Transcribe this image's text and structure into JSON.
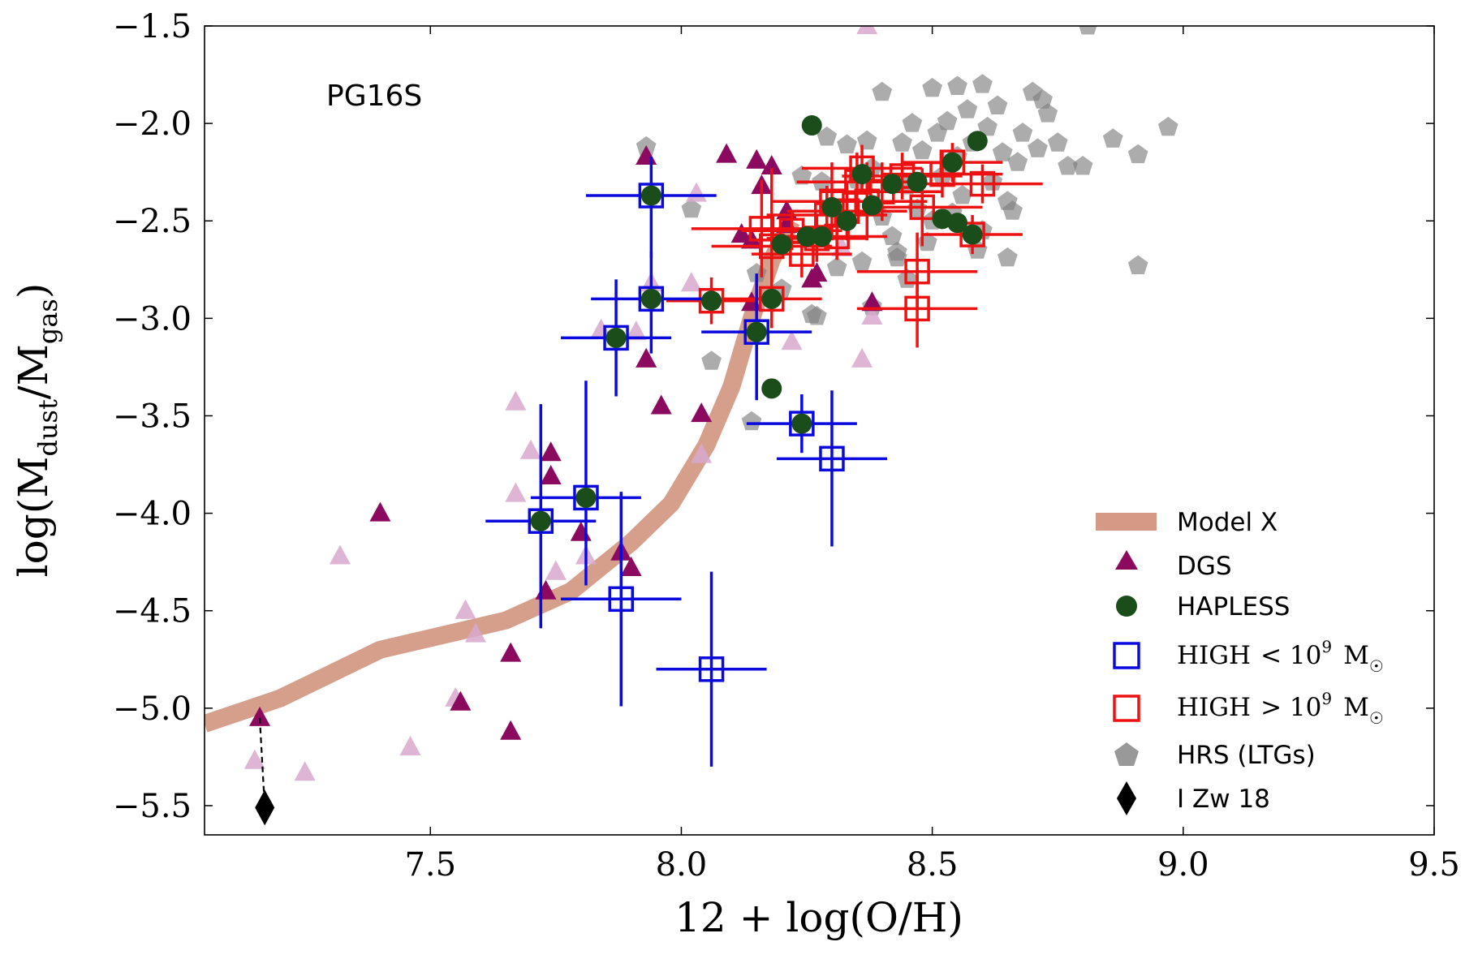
{
  "chart_data": {
    "type": "scatter",
    "title": "",
    "annotation": "PG16S",
    "xlabel": "12 + log(O/H)",
    "ylabel": {
      "prefix": "log(M",
      "sub1": "dust",
      "mid": "/M",
      "sub2": "gas",
      "suffix": ")"
    },
    "xlim": [
      7.05,
      9.5
    ],
    "ylim": [
      -5.65,
      -1.5
    ],
    "x_ticks": [
      7.5,
      8.0,
      8.5,
      9.0,
      9.5
    ],
    "x_tick_labels": [
      "7.5",
      "8.0",
      "8.5",
      "9.0",
      "9.5"
    ],
    "y_ticks": [
      -1.5,
      -2.0,
      -2.5,
      -3.0,
      -3.5,
      -4.0,
      -4.5,
      -5.0,
      -5.5
    ],
    "y_tick_labels": [
      "−1.5",
      "−2.0",
      "−2.5",
      "−3.0",
      "−3.5",
      "−4.0",
      "−4.5",
      "−5.0",
      "−5.5"
    ],
    "legend": {
      "position": "bottom-right",
      "entries": [
        {
          "key": "model",
          "label": "Model X"
        },
        {
          "key": "dgs",
          "label": "DGS"
        },
        {
          "key": "hapless",
          "label": "HAPLESS"
        },
        {
          "key": "high_low",
          "label": "HIGH",
          "math": "< 10",
          "exp": "9",
          "unit": "M",
          "unit_sym": "☉"
        },
        {
          "key": "high_high",
          "label": "HIGH",
          "math": "> 10",
          "exp": "9",
          "unit": "M",
          "unit_sym": "☉"
        },
        {
          "key": "hrs",
          "label": "HRS (LTGs)"
        },
        {
          "key": "izw18",
          "label": "I Zw 18"
        }
      ]
    },
    "colors": {
      "model": "#d49a86",
      "dgs": "#8b0a5f",
      "dgs_limits": "#d8a8cc",
      "hapless": "#1b4d1b",
      "high_low": "#0a0adf",
      "high_high": "#ee1111",
      "hrs": "#808080",
      "izw18": "#000000"
    },
    "model_curve": {
      "x": [
        7.05,
        7.2,
        7.4,
        7.65,
        7.78,
        7.9,
        7.98,
        8.05,
        8.1,
        8.14,
        8.18,
        8.22
      ],
      "y": [
        -5.08,
        -4.95,
        -4.7,
        -4.55,
        -4.4,
        -4.15,
        -3.95,
        -3.65,
        -3.35,
        -3.0,
        -2.7,
        -2.5
      ]
    },
    "series": [
      {
        "name": "DGS",
        "key": "dgs",
        "marker": "triangle",
        "points": [
          [
            7.16,
            -5.05
          ],
          [
            7.4,
            -4.0
          ],
          [
            7.56,
            -4.97
          ],
          [
            7.66,
            -4.72
          ],
          [
            7.66,
            -5.12
          ],
          [
            7.73,
            -4.4
          ],
          [
            7.74,
            -3.69
          ],
          [
            7.74,
            -3.81
          ],
          [
            7.8,
            -4.1
          ],
          [
            7.88,
            -4.2
          ],
          [
            7.9,
            -4.28
          ],
          [
            7.93,
            -2.17
          ],
          [
            7.93,
            -3.21
          ],
          [
            7.96,
            -3.45
          ],
          [
            8.04,
            -3.49
          ],
          [
            8.09,
            -2.16
          ],
          [
            8.12,
            -2.57
          ],
          [
            8.14,
            -2.6
          ],
          [
            8.14,
            -2.92
          ],
          [
            8.15,
            -2.19
          ],
          [
            8.16,
            -2.32
          ],
          [
            8.18,
            -2.22
          ],
          [
            8.21,
            -2.45
          ],
          [
            8.21,
            -2.52
          ],
          [
            8.26,
            -2.8
          ],
          [
            8.27,
            -2.77
          ],
          [
            8.38,
            -2.92
          ]
        ]
      },
      {
        "name": "DGS (limits)",
        "key": "dgs_limits",
        "marker": "triangle",
        "points": [
          [
            7.15,
            -5.27
          ],
          [
            7.25,
            -5.33
          ],
          [
            7.32,
            -4.22
          ],
          [
            7.46,
            -5.2
          ],
          [
            7.55,
            -4.95
          ],
          [
            7.57,
            -4.5
          ],
          [
            7.59,
            -4.62
          ],
          [
            7.67,
            -3.43
          ],
          [
            7.67,
            -3.9
          ],
          [
            7.7,
            -3.68
          ],
          [
            7.75,
            -4.3
          ],
          [
            7.81,
            -4.22
          ],
          [
            7.84,
            -3.06
          ],
          [
            7.91,
            -3.07
          ],
          [
            7.94,
            -2.82
          ],
          [
            8.02,
            -2.82
          ],
          [
            8.03,
            -2.36
          ],
          [
            8.04,
            -3.7
          ],
          [
            8.22,
            -3.12
          ],
          [
            8.32,
            -2.64
          ],
          [
            8.36,
            -3.21
          ],
          [
            8.38,
            -2.99
          ],
          [
            8.37,
            -1.5
          ]
        ]
      },
      {
        "name": "HAPLESS",
        "key": "hapless",
        "marker": "circle",
        "points": [
          [
            8.26,
            -2.01
          ],
          [
            8.59,
            -2.09
          ],
          [
            8.18,
            -3.36
          ],
          [
            7.72,
            -4.04
          ],
          [
            7.81,
            -3.92
          ],
          [
            7.87,
            -3.1
          ],
          [
            7.94,
            -2.37
          ],
          [
            7.94,
            -2.9
          ],
          [
            8.06,
            -2.91
          ],
          [
            8.15,
            -3.07
          ],
          [
            8.24,
            -3.54
          ],
          [
            8.18,
            -2.9
          ],
          [
            8.2,
            -2.62
          ],
          [
            8.25,
            -2.58
          ],
          [
            8.28,
            -2.58
          ],
          [
            8.33,
            -2.5
          ],
          [
            8.38,
            -2.42
          ],
          [
            8.42,
            -2.31
          ],
          [
            8.47,
            -2.3
          ],
          [
            8.52,
            -2.49
          ],
          [
            8.55,
            -2.51
          ],
          [
            8.58,
            -2.57
          ],
          [
            8.54,
            -2.2
          ],
          [
            8.36,
            -2.26
          ],
          [
            8.3,
            -2.43
          ]
        ]
      },
      {
        "name": "HIGH < 10^9 M☉",
        "key": "high_low",
        "marker": "square-open",
        "points": [
          {
            "x": 7.72,
            "y": -4.04,
            "xerr": 0.11,
            "yerr": [
              0.55,
              0.6
            ]
          },
          {
            "x": 7.81,
            "y": -3.92,
            "xerr": 0.11,
            "yerr": [
              0.45,
              0.6
            ]
          },
          {
            "x": 7.87,
            "y": -3.1,
            "xerr": 0.11,
            "yerr": [
              0.3,
              0.3
            ]
          },
          {
            "x": 7.94,
            "y": -2.37,
            "xerr": 0.13,
            "yerr": [
              0.32,
              0.2
            ]
          },
          {
            "x": 7.94,
            "y": -2.9,
            "xerr": 0.12,
            "yerr": [
              0.28,
              0.24
            ]
          },
          {
            "x": 7.88,
            "y": -4.44,
            "xerr": 0.12,
            "yerr": [
              0.55,
              0.55
            ]
          },
          {
            "x": 8.06,
            "y": -4.8,
            "xerr": 0.11,
            "yerr": [
              0.5,
              0.5
            ]
          },
          {
            "x": 8.15,
            "y": -3.07,
            "xerr": 0.11,
            "yerr": [
              0.35,
              0.3
            ]
          },
          {
            "x": 8.24,
            "y": -3.54,
            "xerr": 0.11,
            "yerr": [
              0.15,
              0.15
            ]
          },
          {
            "x": 8.3,
            "y": -3.72,
            "xerr": 0.11,
            "yerr": [
              0.45,
              0.35
            ]
          }
        ]
      },
      {
        "name": "HIGH > 10^9 M☉",
        "key": "high_high",
        "marker": "square-open",
        "points": [
          {
            "x": 8.06,
            "y": -2.91,
            "xerr": 0.09,
            "yerr": [
              0.12,
              0.12
            ]
          },
          {
            "x": 8.16,
            "y": -2.54,
            "xerr": 0.14,
            "yerr": [
              0.25,
              0.25
            ]
          },
          {
            "x": 8.18,
            "y": -2.63,
            "xerr": 0.12,
            "yerr": [
              0.4,
              0.4
            ]
          },
          {
            "x": 8.18,
            "y": -2.9,
            "xerr": 0.1,
            "yerr": [
              0.15,
              0.15
            ]
          },
          {
            "x": 8.22,
            "y": -2.55,
            "xerr": 0.1,
            "yerr": [
              0.1,
              0.1
            ]
          },
          {
            "x": 8.24,
            "y": -2.67,
            "xerr": 0.1,
            "yerr": [
              0.12,
              0.12
            ]
          },
          {
            "x": 8.27,
            "y": -2.59,
            "xerr": 0.1,
            "yerr": [
              0.12,
              0.12
            ]
          },
          {
            "x": 8.29,
            "y": -2.47,
            "xerr": 0.12,
            "yerr": [
              0.15,
              0.15
            ]
          },
          {
            "x": 8.3,
            "y": -2.4,
            "xerr": 0.12,
            "yerr": [
              0.2,
              0.2
            ]
          },
          {
            "x": 8.31,
            "y": -2.58,
            "xerr": 0.1,
            "yerr": [
              0.12,
              0.12
            ]
          },
          {
            "x": 8.33,
            "y": -2.45,
            "xerr": 0.12,
            "yerr": [
              0.15,
              0.15
            ]
          },
          {
            "x": 8.35,
            "y": -2.3,
            "xerr": 0.12,
            "yerr": [
              0.15,
              0.15
            ]
          },
          {
            "x": 8.36,
            "y": -2.23,
            "xerr": 0.12,
            "yerr": [
              0.12,
              0.12
            ]
          },
          {
            "x": 8.37,
            "y": -2.4,
            "xerr": 0.12,
            "yerr": [
              0.2,
              0.2
            ]
          },
          {
            "x": 8.4,
            "y": -2.35,
            "xerr": 0.12,
            "yerr": [
              0.15,
              0.15
            ]
          },
          {
            "x": 8.44,
            "y": -2.27,
            "xerr": 0.12,
            "yerr": [
              0.12,
              0.12
            ]
          },
          {
            "x": 8.47,
            "y": -2.76,
            "xerr": 0.12,
            "yerr": [
              0.2,
              0.2
            ]
          },
          {
            "x": 8.47,
            "y": -2.95,
            "xerr": 0.12,
            "yerr": [
              0.2,
              0.2
            ]
          },
          {
            "x": 8.48,
            "y": -2.43,
            "xerr": 0.12,
            "yerr": [
              0.2,
              0.2
            ]
          },
          {
            "x": 8.52,
            "y": -2.26,
            "xerr": 0.12,
            "yerr": [
              0.12,
              0.12
            ]
          },
          {
            "x": 8.54,
            "y": -2.2,
            "xerr": 0.1,
            "yerr": [
              0.1,
              0.1
            ]
          },
          {
            "x": 8.58,
            "y": -2.57,
            "xerr": 0.1,
            "yerr": [
              0.1,
              0.1
            ]
          },
          {
            "x": 8.6,
            "y": -2.31,
            "xerr": 0.12,
            "yerr": [
              0.1,
              0.1
            ]
          }
        ]
      },
      {
        "name": "HRS (LTGs)",
        "key": "hrs",
        "marker": "pentagon",
        "points": [
          [
            7.93,
            -2.12
          ],
          [
            8.02,
            -2.44
          ],
          [
            8.06,
            -3.22
          ],
          [
            8.14,
            -3.53
          ],
          [
            8.15,
            -2.77
          ],
          [
            8.2,
            -2.85
          ],
          [
            8.24,
            -2.27
          ],
          [
            8.26,
            -2.98
          ],
          [
            8.29,
            -2.07
          ],
          [
            8.33,
            -2.11
          ],
          [
            8.35,
            -2.29
          ],
          [
            8.37,
            -2.09
          ],
          [
            8.38,
            -2.23
          ],
          [
            8.4,
            -1.84
          ],
          [
            8.4,
            -2.48
          ],
          [
            8.42,
            -2.58
          ],
          [
            8.43,
            -2.69
          ],
          [
            8.44,
            -2.1
          ],
          [
            8.45,
            -2.32
          ],
          [
            8.46,
            -2.0
          ],
          [
            8.47,
            -2.44
          ],
          [
            8.48,
            -2.14
          ],
          [
            8.49,
            -2.61
          ],
          [
            8.5,
            -1.82
          ],
          [
            8.51,
            -2.05
          ],
          [
            8.52,
            -2.27
          ],
          [
            8.53,
            -1.99
          ],
          [
            8.54,
            -2.46
          ],
          [
            8.55,
            -1.81
          ],
          [
            8.55,
            -2.17
          ],
          [
            8.56,
            -2.37
          ],
          [
            8.57,
            -1.93
          ],
          [
            8.58,
            -2.1
          ],
          [
            8.59,
            -2.65
          ],
          [
            8.6,
            -1.8
          ],
          [
            8.61,
            -2.02
          ],
          [
            8.62,
            -2.3
          ],
          [
            8.63,
            -1.91
          ],
          [
            8.64,
            -2.15
          ],
          [
            8.65,
            -2.69
          ],
          [
            8.66,
            -2.45
          ],
          [
            8.67,
            -2.2
          ],
          [
            8.68,
            -2.05
          ],
          [
            8.7,
            -1.84
          ],
          [
            8.71,
            -2.13
          ],
          [
            8.72,
            -1.88
          ],
          [
            8.73,
            -1.95
          ],
          [
            8.75,
            -2.1
          ],
          [
            8.77,
            -2.22
          ],
          [
            8.81,
            -1.5
          ],
          [
            8.86,
            -2.08
          ],
          [
            8.91,
            -2.16
          ],
          [
            8.91,
            -2.73
          ],
          [
            8.97,
            -2.02
          ],
          [
            8.8,
            -2.22
          ],
          [
            8.38,
            -2.94
          ],
          [
            8.43,
            -2.66
          ],
          [
            8.36,
            -2.71
          ],
          [
            8.31,
            -2.74
          ],
          [
            8.27,
            -2.99
          ],
          [
            8.5,
            -2.5
          ],
          [
            8.6,
            -2.55
          ],
          [
            8.65,
            -2.4
          ],
          [
            8.45,
            -2.8
          ],
          [
            8.28,
            -2.3
          ]
        ]
      },
      {
        "name": "I Zw 18",
        "key": "izw18",
        "marker": "diamond",
        "points": [
          [
            7.17,
            -5.51
          ]
        ],
        "link_to": [
          7.16,
          -5.05
        ]
      }
    ]
  }
}
